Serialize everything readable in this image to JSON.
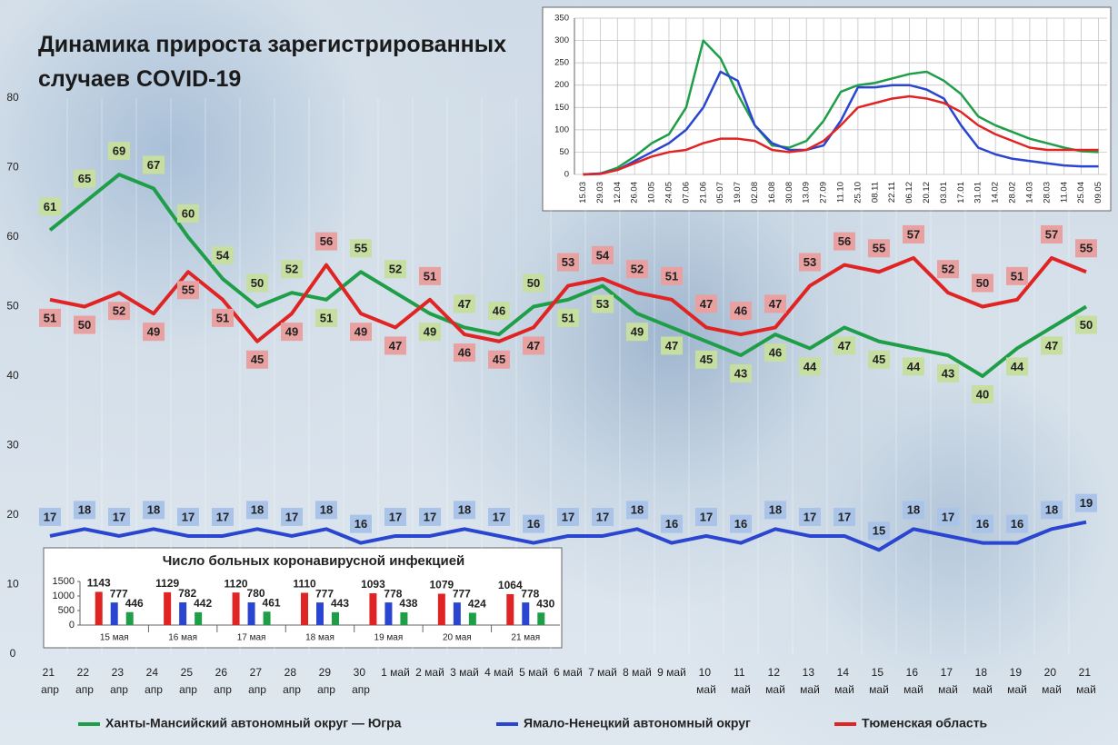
{
  "chart_data": [
    {
      "type": "line",
      "title": "Динамика прироста зарегистрированных случаев COVID-19",
      "categories": [
        "21 апр",
        "22 апр",
        "23 апр",
        "24 апр",
        "25 апр",
        "26 апр",
        "27 апр",
        "28 апр",
        "29 апр",
        "30 апр",
        "1 май",
        "2 май",
        "3 май",
        "4 май",
        "5 май",
        "6 май",
        "7 май",
        "8 май",
        "9 май",
        "10 май",
        "11 май",
        "12 май",
        "13 май",
        "14 май",
        "15 май",
        "16 май",
        "17 май",
        "18 май",
        "19 май",
        "20 май",
        "21 май"
      ],
      "series": [
        {
          "name": "Ханты-Мансийский автономный округ — Югра",
          "color": "#1f9e48",
          "values": [
            61,
            65,
            69,
            67,
            60,
            54,
            50,
            52,
            51,
            55,
            52,
            49,
            47,
            46,
            50,
            51,
            53,
            49,
            47,
            45,
            43,
            46,
            44,
            47,
            45,
            44,
            43,
            40,
            44,
            47,
            50
          ]
        },
        {
          "name": "Ямало-Ненецкий автономный округ",
          "color": "#2a45d0",
          "values": [
            17,
            18,
            17,
            18,
            17,
            17,
            18,
            17,
            18,
            16,
            17,
            17,
            18,
            17,
            16,
            17,
            17,
            18,
            16,
            17,
            16,
            18,
            17,
            17,
            15,
            18,
            17,
            16,
            16,
            18,
            19
          ]
        },
        {
          "name": "Тюменская область",
          "color": "#e02424",
          "values": [
            51,
            50,
            52,
            49,
            55,
            51,
            45,
            49,
            56,
            49,
            47,
            51,
            46,
            45,
            47,
            53,
            54,
            52,
            51,
            47,
            46,
            47,
            53,
            56,
            55,
            57,
            52,
            50,
            51,
            57,
            55
          ]
        }
      ],
      "ylim": [
        0,
        80
      ],
      "yticks": [
        0,
        10,
        20,
        30,
        40,
        50,
        60,
        70,
        80
      ],
      "legend": "bottom"
    },
    {
      "type": "line",
      "categories": [
        "15.03",
        "29.03",
        "12.04",
        "26.04",
        "10.05",
        "24.05",
        "07.06",
        "21.06",
        "05.07",
        "19.07",
        "02.08",
        "16.08",
        "30.08",
        "13.09",
        "27.09",
        "11.10",
        "25.10",
        "08.11",
        "22.11",
        "06.12",
        "20.12",
        "03.01",
        "17.01",
        "31.01",
        "14.02",
        "28.02",
        "14.03",
        "28.03",
        "11.04",
        "25.04",
        "09.05"
      ],
      "series": [
        {
          "color": "#1f9e48",
          "values": [
            0,
            2,
            15,
            40,
            70,
            90,
            150,
            300,
            260,
            180,
            110,
            65,
            60,
            75,
            120,
            185,
            200,
            205,
            215,
            225,
            230,
            210,
            180,
            130,
            110,
            95,
            80,
            70,
            60,
            52,
            50
          ]
        },
        {
          "color": "#2a45d0",
          "values": [
            0,
            2,
            10,
            30,
            50,
            70,
            100,
            150,
            230,
            210,
            110,
            70,
            55,
            55,
            65,
            120,
            195,
            195,
            200,
            200,
            190,
            170,
            110,
            60,
            45,
            35,
            30,
            25,
            20,
            18,
            18
          ]
        },
        {
          "color": "#e02424",
          "values": [
            0,
            1,
            10,
            25,
            40,
            50,
            55,
            70,
            80,
            80,
            75,
            55,
            50,
            55,
            75,
            110,
            150,
            160,
            170,
            175,
            170,
            160,
            140,
            110,
            90,
            75,
            60,
            55,
            55,
            55,
            55
          ]
        }
      ],
      "ylim": [
        0,
        350
      ],
      "yticks": [
        0,
        50,
        100,
        150,
        200,
        250,
        300,
        350
      ],
      "grid": true
    },
    {
      "type": "bar",
      "title": "Число больных коронавирусной инфекцией",
      "categories": [
        "15 мая",
        "16 мая",
        "17 мая",
        "18 мая",
        "19 мая",
        "20 мая",
        "21 мая"
      ],
      "series": [
        {
          "color": "#e02424",
          "values": [
            1143,
            1129,
            1120,
            1110,
            1093,
            1079,
            1064
          ]
        },
        {
          "color": "#2a45d0",
          "values": [
            777,
            782,
            780,
            777,
            778,
            777,
            778
          ]
        },
        {
          "color": "#1f9e48",
          "values": [
            446,
            442,
            461,
            443,
            438,
            424,
            430
          ]
        }
      ],
      "ylim": [
        0,
        1500
      ],
      "yticks": [
        0,
        500,
        1000,
        1500
      ]
    }
  ]
}
